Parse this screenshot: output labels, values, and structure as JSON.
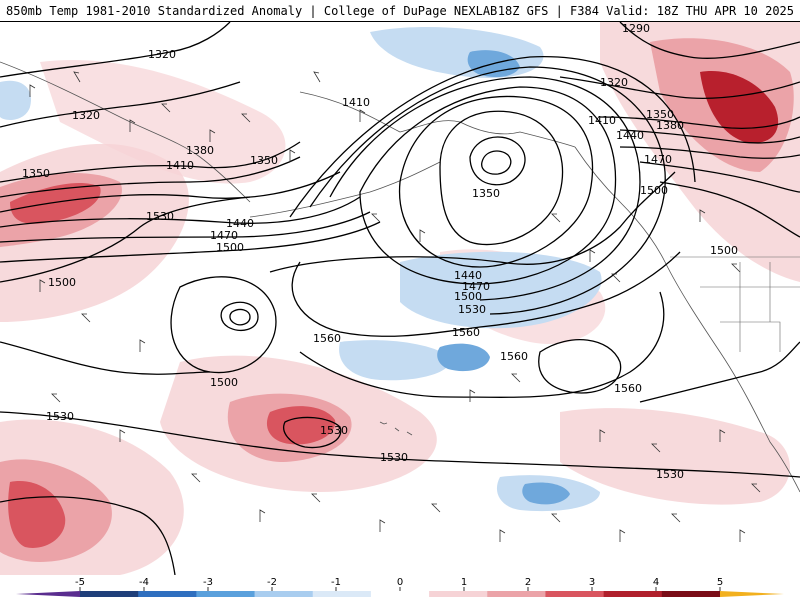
{
  "header": {
    "title": "850mb Temp 1981-2010 Standardized Anomaly | College of DuPage NEXLAB",
    "run_info": "18Z GFS | F384 Valid: 18Z THU APR 10 2025"
  },
  "contour_labels": [
    {
      "text": "1320"
    },
    {
      "text": "1320"
    },
    {
      "text": "1290"
    },
    {
      "text": "1320"
    },
    {
      "text": "1410"
    },
    {
      "text": "1410"
    },
    {
      "text": "1350"
    },
    {
      "text": "1380"
    },
    {
      "text": "1350"
    },
    {
      "text": "1380"
    },
    {
      "text": "1440"
    },
    {
      "text": "1350"
    },
    {
      "text": "1470"
    },
    {
      "text": "1410"
    },
    {
      "text": "1350"
    },
    {
      "text": "1500"
    },
    {
      "text": "1530"
    },
    {
      "text": "1440"
    },
    {
      "text": "1470"
    },
    {
      "text": "1500"
    },
    {
      "text": "1500"
    },
    {
      "text": "1440"
    },
    {
      "text": "1470"
    },
    {
      "text": "1500"
    },
    {
      "text": "1530"
    },
    {
      "text": "1560"
    },
    {
      "text": "1560"
    },
    {
      "text": "1560"
    },
    {
      "text": "1500"
    },
    {
      "text": "1560"
    },
    {
      "text": "1530"
    },
    {
      "text": "1530"
    },
    {
      "text": "1530"
    },
    {
      "text": "1530"
    },
    {
      "text": "1500"
    }
  ],
  "colorbar": {
    "tick_labels": [
      "-5",
      "-4",
      "-3",
      "-2",
      "-1",
      "0",
      "1",
      "2",
      "3",
      "4",
      "5"
    ],
    "colors": [
      "#5a2d8f",
      "#1f3f7a",
      "#2f6fbf",
      "#5aa0dc",
      "#a9cdef",
      "#dbe9f7",
      "#ffffff",
      "#f6d3d6",
      "#eba3a8",
      "#d9555f",
      "#b0202c",
      "#7a0d17",
      "#f2b01e"
    ]
  },
  "anomaly_colors": {
    "neg_strong": "#6fa8dc",
    "neg_weak": "#c5dcf2",
    "pos_weak": "#f6d3d6",
    "pos_mid": "#eba3a8",
    "pos_strong": "#d9555f",
    "pos_vstrong": "#b8202d"
  }
}
